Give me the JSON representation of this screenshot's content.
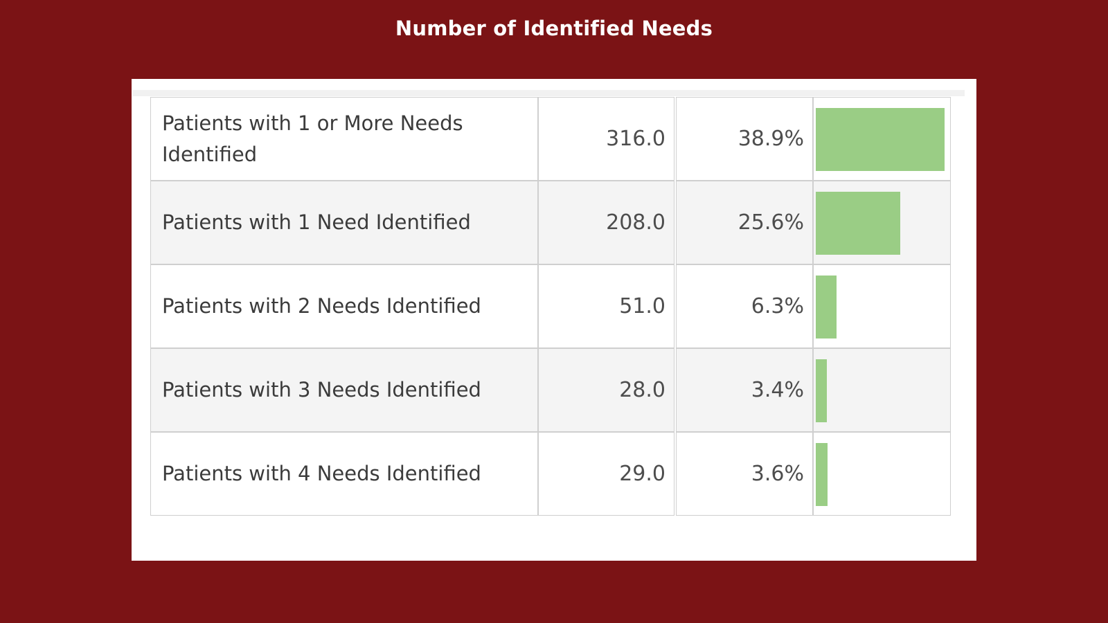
{
  "title": "Number of Identified Needs",
  "colors": {
    "background": "#7b1315",
    "panel": "#ffffff",
    "bar": "#9acd85",
    "alt_row": "#f4f4f4"
  },
  "chart_data": {
    "type": "table",
    "title": "Number of Identified Needs",
    "columns": [
      "",
      "",
      "",
      ""
    ],
    "rows": [
      {
        "label": "Patients with 1 or More Needs Identified",
        "count": "316.0",
        "percent": "38.9%",
        "value": 38.9
      },
      {
        "label": "Patients with 1 Need Identified",
        "count": "208.0",
        "percent": "25.6%",
        "value": 25.6
      },
      {
        "label": "Patients with 2 Needs Identified",
        "count": "51.0",
        "percent": "6.3%",
        "value": 6.3
      },
      {
        "label": "Patients with 3 Needs Identified",
        "count": "28.0",
        "percent": "3.4%",
        "value": 3.4
      },
      {
        "label": "Patients with 4 Needs Identified",
        "count": "29.0",
        "percent": "3.6%",
        "value": 3.6
      }
    ],
    "bar_max": 38.9
  }
}
